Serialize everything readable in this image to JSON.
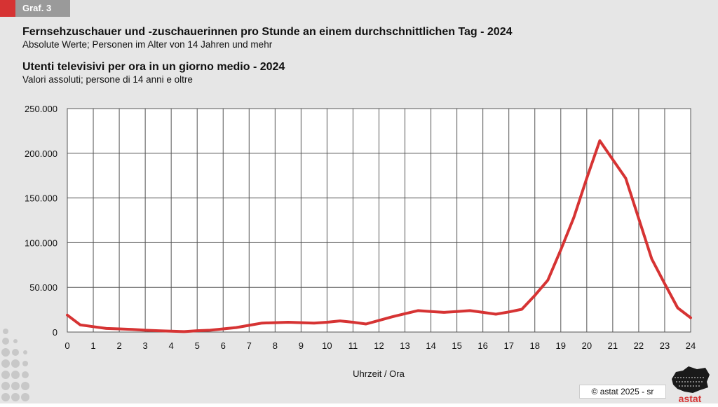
{
  "tag": "Graf. 3",
  "titles": {
    "de_title": "Fernsehzuschauer und -zuschauerinnen pro Stunde an einem durchschnittlichen Tag - 2024",
    "de_subtitle": "Absolute Werte; Personen im Alter von 14 Jahren und mehr",
    "it_title": "Utenti televisivi per ora in un giorno medio - 2024",
    "it_subtitle": "Valori assoluti; persone di 14 anni e oltre"
  },
  "credit": "© astat 2025 - sr",
  "logo_text": "astat",
  "colors": {
    "line": "#d63333",
    "tag_red": "#d63333",
    "tag_gray": "#9a9a9a",
    "background": "#e6e6e6"
  },
  "chart_data": {
    "type": "line",
    "title": "Fernsehzuschauer und -zuschauerinnen pro Stunde an einem durchschnittlichen Tag - 2024",
    "xlabel": "Uhrzeit / Ora",
    "ylabel": "",
    "xlim": [
      0,
      24
    ],
    "ylim": [
      0,
      250000
    ],
    "x_ticks": [
      "0",
      "1",
      "2",
      "3",
      "4",
      "5",
      "6",
      "7",
      "8",
      "9",
      "10",
      "11",
      "12",
      "13",
      "14",
      "15",
      "16",
      "17",
      "18",
      "19",
      "20",
      "21",
      "22",
      "23",
      "24"
    ],
    "y_ticks": [
      "0",
      "50.000",
      "100.000",
      "150.000",
      "200.000",
      "250.000"
    ],
    "grid": true,
    "legend": "none",
    "series": [
      {
        "x": [
          0,
          0.5,
          1,
          1.5,
          2,
          2.5,
          3,
          3.5,
          4,
          4.5,
          5,
          5.5,
          6,
          6.5,
          7,
          7.5,
          8,
          8.5,
          9,
          9.5,
          10,
          10.5,
          11,
          11.5,
          12,
          12.5,
          13,
          13.5,
          14,
          14.5,
          15,
          15.5,
          16,
          16.5,
          17,
          17.5,
          18,
          18.5,
          19,
          19.5,
          20,
          20.5,
          21,
          21.5,
          22,
          22.5,
          23,
          23.5,
          24
        ],
        "values": [
          19000,
          8000,
          6000,
          4000,
          3500,
          3000,
          2000,
          1500,
          1000,
          500,
          1500,
          2000,
          3500,
          5000,
          7500,
          10000,
          10500,
          11000,
          10500,
          10000,
          11000,
          12500,
          11000,
          9000,
          13000,
          17000,
          20500,
          24000,
          23000,
          22000,
          23000,
          24000,
          22000,
          20000,
          22500,
          25500,
          41000,
          58000,
          92000,
          128000,
          172000,
          214000,
          193000,
          172000,
          127000,
          82000,
          54000,
          27000,
          16000
        ]
      }
    ]
  }
}
